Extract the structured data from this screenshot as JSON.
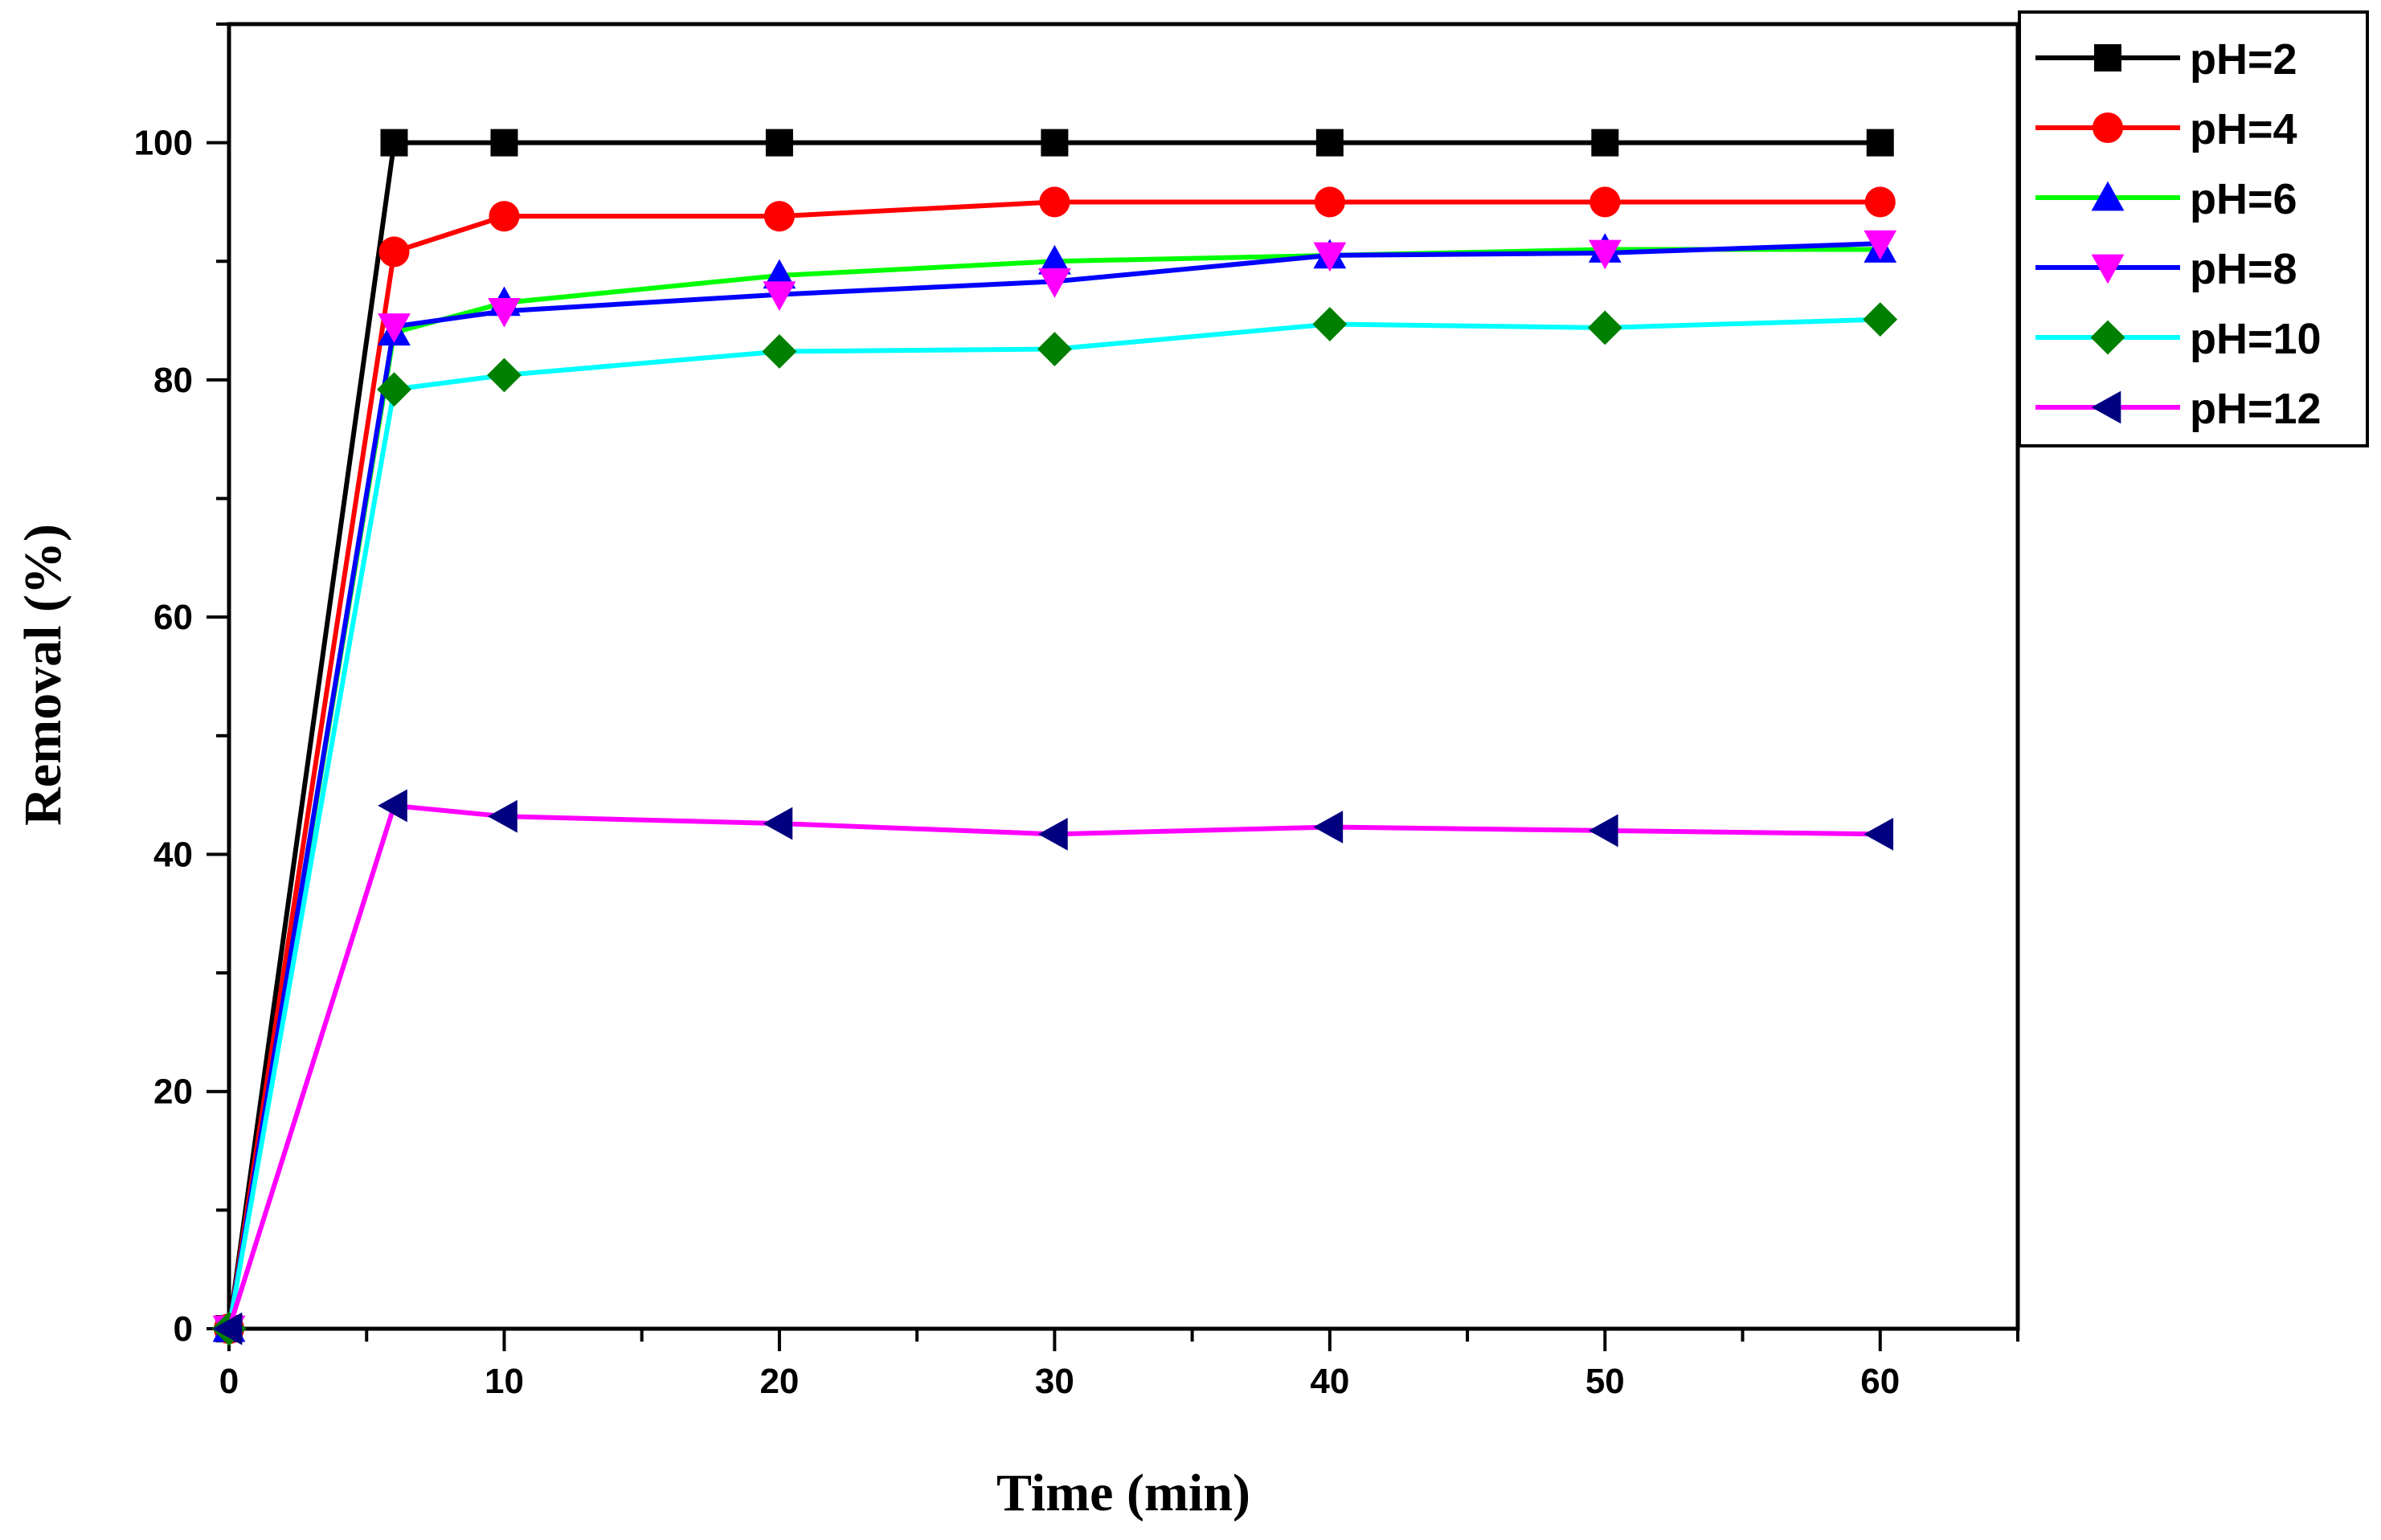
{
  "chart_data": {
    "type": "line",
    "title": "",
    "xlabel": "Time (min)",
    "ylabel": "Removal (%)",
    "xlim": [
      0,
      65
    ],
    "ylim": [
      0,
      110
    ],
    "xticks": [
      0,
      10,
      20,
      30,
      40,
      50,
      60
    ],
    "yticks": [
      0,
      20,
      40,
      60,
      80,
      100
    ],
    "x": [
      0,
      6,
      10,
      20,
      30,
      40,
      50,
      60
    ],
    "legend_position": "top-right",
    "series": [
      {
        "name": "pH=2",
        "line_color": "#000000",
        "marker_color": "#000000",
        "marker": "square",
        "values": [
          0,
          100,
          100,
          100,
          100,
          100,
          100,
          100
        ]
      },
      {
        "name": "pH=4",
        "line_color": "#ff0000",
        "marker_color": "#ff0000",
        "marker": "circle",
        "values": [
          0,
          90.8,
          93.8,
          93.8,
          95.0,
          95.0,
          95.0,
          95.0
        ]
      },
      {
        "name": "pH=6",
        "line_color": "#00ff00",
        "marker_color": "#0000ff",
        "marker": "triangle-up",
        "values": [
          0,
          84.0,
          86.5,
          88.8,
          90.0,
          90.5,
          91.0,
          91.0
        ]
      },
      {
        "name": "pH=8",
        "line_color": "#0000ff",
        "marker_color": "#ff00ff",
        "marker": "triangle-down",
        "values": [
          0,
          84.5,
          85.8,
          87.2,
          88.3,
          90.5,
          90.7,
          91.5
        ]
      },
      {
        "name": "pH=10",
        "line_color": "#00ffff",
        "marker_color": "#008000",
        "marker": "diamond",
        "values": [
          0,
          79.2,
          80.4,
          82.4,
          82.6,
          84.7,
          84.4,
          85.1
        ]
      },
      {
        "name": "pH=12",
        "line_color": "#ff00ff",
        "marker_color": "#000080",
        "marker": "triangle-left",
        "values": [
          0,
          44.1,
          43.2,
          42.6,
          41.7,
          42.3,
          42.0,
          41.7
        ]
      }
    ]
  }
}
